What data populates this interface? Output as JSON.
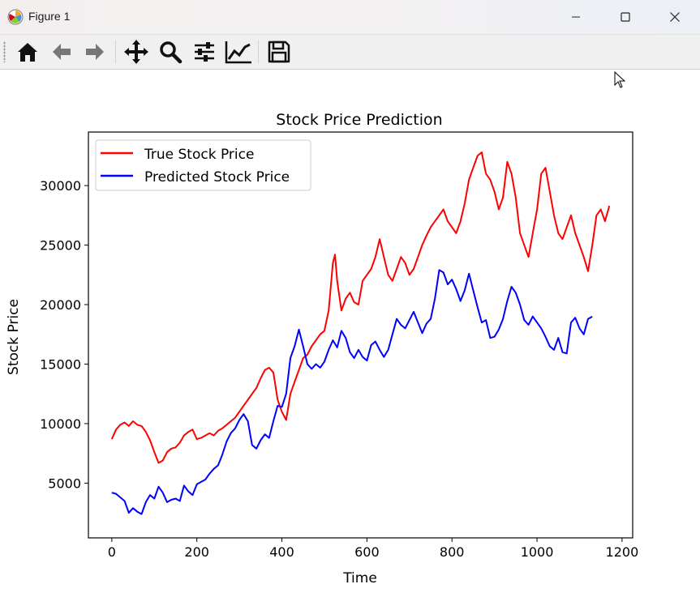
{
  "window": {
    "title": "Figure 1",
    "app_icon": "matplotlib-icon",
    "buttons": {
      "minimize": "minimize-icon",
      "maximize": "maximize-icon",
      "close": "close-icon"
    }
  },
  "toolbar": {
    "buttons": [
      {
        "name": "home-button",
        "icon": "home-icon"
      },
      {
        "name": "back-button",
        "icon": "arrow-left-icon"
      },
      {
        "name": "forward-button",
        "icon": "arrow-right-icon"
      },
      {
        "name": "pan-button",
        "icon": "move-icon"
      },
      {
        "name": "zoom-button",
        "icon": "magnifier-icon"
      },
      {
        "name": "subplots-button",
        "icon": "sliders-icon"
      },
      {
        "name": "axes-edit-button",
        "icon": "line-chart-icon"
      },
      {
        "name": "save-button",
        "icon": "floppy-disk-icon"
      }
    ]
  },
  "chart_data": {
    "type": "line",
    "title": "Stock Price Prediction",
    "xlabel": "Time",
    "ylabel": "Stock Price",
    "xlim": [
      -55,
      1225
    ],
    "ylim": [
      400,
      34500
    ],
    "xticks": [
      0,
      200,
      400,
      600,
      800,
      1000,
      1200
    ],
    "yticks": [
      5000,
      10000,
      15000,
      20000,
      25000,
      30000
    ],
    "grid": false,
    "legend_position": "top-left",
    "series": [
      {
        "name": "True Stock Price",
        "color": "#ff0000",
        "points": [
          [
            0,
            8700
          ],
          [
            10,
            9500
          ],
          [
            20,
            9900
          ],
          [
            30,
            10100
          ],
          [
            40,
            9800
          ],
          [
            50,
            10200
          ],
          [
            60,
            9900
          ],
          [
            70,
            9800
          ],
          [
            80,
            9300
          ],
          [
            90,
            8600
          ],
          [
            100,
            7600
          ],
          [
            110,
            6700
          ],
          [
            120,
            6900
          ],
          [
            130,
            7600
          ],
          [
            140,
            7900
          ],
          [
            150,
            8000
          ],
          [
            160,
            8400
          ],
          [
            170,
            9000
          ],
          [
            180,
            9300
          ],
          [
            190,
            9500
          ],
          [
            200,
            8700
          ],
          [
            210,
            8800
          ],
          [
            220,
            9000
          ],
          [
            230,
            9200
          ],
          [
            240,
            9000
          ],
          [
            250,
            9400
          ],
          [
            260,
            9600
          ],
          [
            270,
            9900
          ],
          [
            280,
            10200
          ],
          [
            290,
            10500
          ],
          [
            300,
            11000
          ],
          [
            310,
            11500
          ],
          [
            320,
            12000
          ],
          [
            330,
            12500
          ],
          [
            340,
            13000
          ],
          [
            350,
            13800
          ],
          [
            360,
            14500
          ],
          [
            370,
            14700
          ],
          [
            380,
            14300
          ],
          [
            390,
            12000
          ],
          [
            400,
            11000
          ],
          [
            410,
            10300
          ],
          [
            420,
            12500
          ],
          [
            430,
            13500
          ],
          [
            440,
            14500
          ],
          [
            450,
            15500
          ],
          [
            460,
            15800
          ],
          [
            470,
            16500
          ],
          [
            480,
            17000
          ],
          [
            490,
            17500
          ],
          [
            500,
            17800
          ],
          [
            510,
            19500
          ],
          [
            520,
            23500
          ],
          [
            525,
            24200
          ],
          [
            530,
            22000
          ],
          [
            540,
            19500
          ],
          [
            550,
            20500
          ],
          [
            560,
            21000
          ],
          [
            570,
            20200
          ],
          [
            580,
            20000
          ],
          [
            590,
            22000
          ],
          [
            600,
            22500
          ],
          [
            610,
            23000
          ],
          [
            620,
            24000
          ],
          [
            630,
            25500
          ],
          [
            640,
            24000
          ],
          [
            650,
            22500
          ],
          [
            660,
            22000
          ],
          [
            670,
            23000
          ],
          [
            680,
            24000
          ],
          [
            690,
            23500
          ],
          [
            700,
            22500
          ],
          [
            710,
            23000
          ],
          [
            720,
            24000
          ],
          [
            730,
            25000
          ],
          [
            740,
            25800
          ],
          [
            750,
            26500
          ],
          [
            760,
            27000
          ],
          [
            770,
            27500
          ],
          [
            780,
            28000
          ],
          [
            790,
            27000
          ],
          [
            800,
            26500
          ],
          [
            810,
            26000
          ],
          [
            820,
            27000
          ],
          [
            830,
            28500
          ],
          [
            840,
            30500
          ],
          [
            850,
            31500
          ],
          [
            860,
            32500
          ],
          [
            870,
            32800
          ],
          [
            880,
            31000
          ],
          [
            890,
            30500
          ],
          [
            900,
            29500
          ],
          [
            910,
            28000
          ],
          [
            920,
            29000
          ],
          [
            930,
            32000
          ],
          [
            940,
            31000
          ],
          [
            950,
            29000
          ],
          [
            960,
            26000
          ],
          [
            970,
            25000
          ],
          [
            980,
            24000
          ],
          [
            990,
            26000
          ],
          [
            1000,
            28000
          ],
          [
            1010,
            31000
          ],
          [
            1020,
            31500
          ],
          [
            1030,
            29500
          ],
          [
            1040,
            27500
          ],
          [
            1050,
            26000
          ],
          [
            1060,
            25500
          ],
          [
            1070,
            26500
          ],
          [
            1080,
            27500
          ],
          [
            1090,
            26000
          ],
          [
            1100,
            25000
          ],
          [
            1110,
            24000
          ],
          [
            1120,
            22800
          ],
          [
            1130,
            25000
          ],
          [
            1140,
            27500
          ],
          [
            1150,
            28000
          ],
          [
            1160,
            27000
          ],
          [
            1170,
            28300
          ]
        ]
      },
      {
        "name": "Predicted Stock Price",
        "color": "#0000ff",
        "points": [
          [
            0,
            4200
          ],
          [
            10,
            4100
          ],
          [
            20,
            3800
          ],
          [
            30,
            3500
          ],
          [
            40,
            2500
          ],
          [
            50,
            2900
          ],
          [
            60,
            2600
          ],
          [
            70,
            2400
          ],
          [
            80,
            3400
          ],
          [
            90,
            4000
          ],
          [
            100,
            3700
          ],
          [
            110,
            4700
          ],
          [
            120,
            4200
          ],
          [
            130,
            3400
          ],
          [
            140,
            3600
          ],
          [
            150,
            3700
          ],
          [
            160,
            3500
          ],
          [
            170,
            4800
          ],
          [
            180,
            4300
          ],
          [
            190,
            4000
          ],
          [
            200,
            4900
          ],
          [
            210,
            5100
          ],
          [
            220,
            5300
          ],
          [
            230,
            5800
          ],
          [
            240,
            6200
          ],
          [
            250,
            6500
          ],
          [
            260,
            7400
          ],
          [
            270,
            8500
          ],
          [
            280,
            9200
          ],
          [
            290,
            9600
          ],
          [
            300,
            10300
          ],
          [
            310,
            10800
          ],
          [
            320,
            10200
          ],
          [
            330,
            8200
          ],
          [
            340,
            7900
          ],
          [
            350,
            8600
          ],
          [
            360,
            9100
          ],
          [
            370,
            8800
          ],
          [
            380,
            10200
          ],
          [
            390,
            11500
          ],
          [
            400,
            11400
          ],
          [
            410,
            12500
          ],
          [
            420,
            15500
          ],
          [
            430,
            16500
          ],
          [
            440,
            17900
          ],
          [
            450,
            16500
          ],
          [
            460,
            15000
          ],
          [
            470,
            14600
          ],
          [
            480,
            15000
          ],
          [
            490,
            14700
          ],
          [
            500,
            15200
          ],
          [
            510,
            16200
          ],
          [
            520,
            17000
          ],
          [
            530,
            16400
          ],
          [
            540,
            17800
          ],
          [
            550,
            17200
          ],
          [
            560,
            16000
          ],
          [
            570,
            15500
          ],
          [
            580,
            16200
          ],
          [
            590,
            15600
          ],
          [
            600,
            15300
          ],
          [
            610,
            16600
          ],
          [
            620,
            16900
          ],
          [
            630,
            16200
          ],
          [
            640,
            15600
          ],
          [
            650,
            16200
          ],
          [
            660,
            17500
          ],
          [
            670,
            18800
          ],
          [
            680,
            18300
          ],
          [
            690,
            18000
          ],
          [
            700,
            18700
          ],
          [
            710,
            19400
          ],
          [
            720,
            18500
          ],
          [
            730,
            17600
          ],
          [
            740,
            18400
          ],
          [
            750,
            18800
          ],
          [
            760,
            20500
          ],
          [
            770,
            22900
          ],
          [
            780,
            22700
          ],
          [
            790,
            21700
          ],
          [
            800,
            22100
          ],
          [
            810,
            21300
          ],
          [
            820,
            20300
          ],
          [
            830,
            21200
          ],
          [
            840,
            22600
          ],
          [
            850,
            21200
          ],
          [
            860,
            19800
          ],
          [
            870,
            18500
          ],
          [
            880,
            18700
          ],
          [
            890,
            17200
          ],
          [
            900,
            17300
          ],
          [
            910,
            17900
          ],
          [
            920,
            18800
          ],
          [
            930,
            20300
          ],
          [
            940,
            21500
          ],
          [
            950,
            21000
          ],
          [
            960,
            20000
          ],
          [
            970,
            18700
          ],
          [
            980,
            18300
          ],
          [
            990,
            19000
          ],
          [
            1000,
            18500
          ],
          [
            1010,
            18000
          ],
          [
            1020,
            17300
          ],
          [
            1030,
            16500
          ],
          [
            1040,
            16200
          ],
          [
            1050,
            17200
          ],
          [
            1060,
            16000
          ],
          [
            1070,
            15900
          ],
          [
            1080,
            18500
          ],
          [
            1090,
            18900
          ],
          [
            1100,
            18000
          ],
          [
            1110,
            17500
          ],
          [
            1120,
            18800
          ],
          [
            1130,
            19000
          ]
        ]
      }
    ]
  }
}
